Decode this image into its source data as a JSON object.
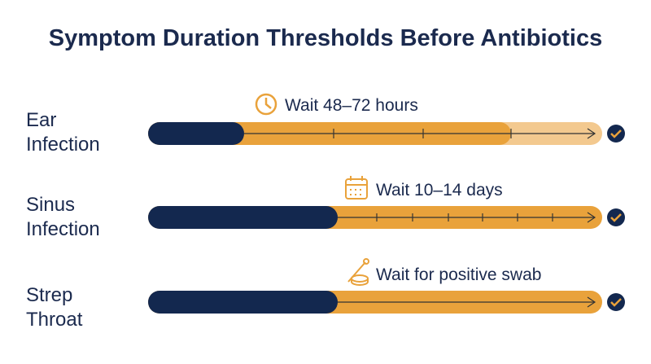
{
  "header": {
    "title": "Symptom Duration Thresholds Before Antibiotics"
  },
  "rows": [
    {
      "label": [
        "Ear",
        "Infection"
      ],
      "wait": "Wait 48–72 hours"
    },
    {
      "label": [
        "Sinus",
        "Infection"
      ],
      "wait": "Wait 10–14 days"
    },
    {
      "label": [
        "Strep",
        "Throat"
      ],
      "wait": "Wait for positive swab"
    }
  ]
}
